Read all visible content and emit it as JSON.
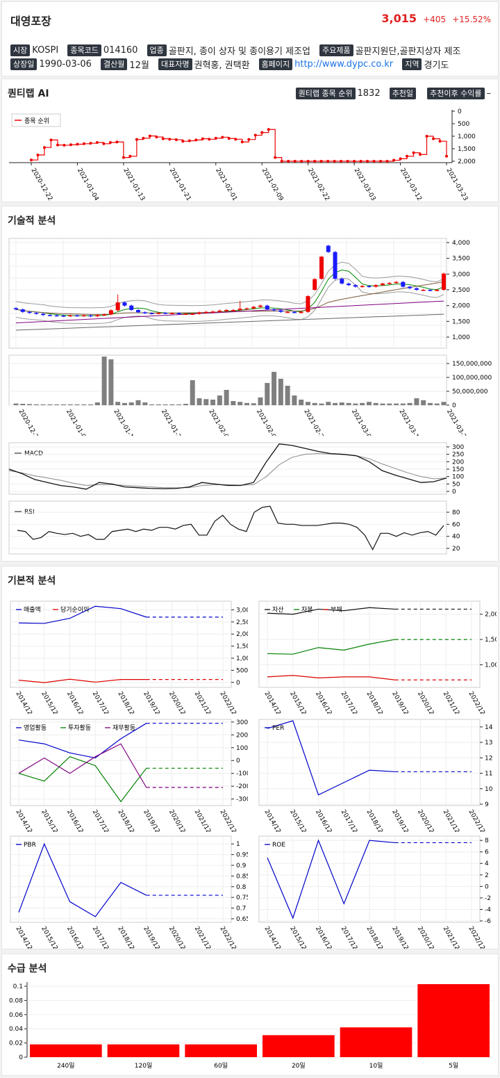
{
  "header": {
    "name": "대영포장",
    "price": "3,015",
    "change": "+405",
    "change_pct": "+15.52%"
  },
  "info": {
    "row1": [
      {
        "k": "시장",
        "v": "KOSPI"
      },
      {
        "k": "종목코드",
        "v": "014160"
      },
      {
        "k": "업종",
        "v": "골판지, 종이 상자 및 종이용기 제조업"
      },
      {
        "k": "주요제품",
        "v": "골판지원단,골판지상자 제조"
      }
    ],
    "row2": [
      {
        "k": "상장일",
        "v": "1990-03-06"
      },
      {
        "k": "결산월",
        "v": "12월"
      },
      {
        "k": "대표자명",
        "v": "권혁홍, 권택환"
      },
      {
        "k": "홈페이지",
        "v": "http://www.dypc.co.kr"
      },
      {
        "k": "지역",
        "v": "경기도"
      }
    ]
  },
  "quant": {
    "title": "퀀티랩 AI",
    "rank_label": "퀀티랩 종목 순위",
    "rank": "1832",
    "rec_label": "추천일",
    "rec_value": "",
    "ret_label": "추천이후 수익률",
    "ret_value": "–",
    "legend": "종목 순위",
    "y_ticks": [
      "0",
      "500",
      "1,000",
      "1,500",
      "2,000"
    ],
    "x_ticks": [
      "2020-12-22",
      "2021-01-04",
      "2021-01-13",
      "2021-01-21",
      "2021-02-01",
      "2021-02-09",
      "2021-02-22",
      "2021-03-03",
      "2021-03-12",
      "2021-03-23"
    ],
    "ranks": [
      1950,
      1750,
      1450,
      1150,
      1350,
      1360,
      1340,
      1320,
      1300,
      1280,
      1250,
      1300,
      1250,
      1230,
      1850,
      1800,
      1130,
      1080,
      990,
      1030,
      1100,
      1120,
      1140,
      1200,
      1180,
      1150,
      1100,
      1120,
      1080,
      1040,
      1090,
      1120,
      1230,
      1130,
      960,
      850,
      730,
      1850,
      2050,
      2050,
      2050,
      2050,
      2050,
      2050,
      2050,
      2050,
      2050,
      2050,
      2050,
      2050,
      2050,
      2050,
      2050,
      2050,
      2000,
      1960,
      1900,
      1800,
      1660,
      1730,
      1000,
      1100,
      1200,
      1800
    ]
  },
  "tech": {
    "title": "기술적 분석",
    "price_ticks": [
      "4,000",
      "3,500",
      "3,000",
      "2,500",
      "2,000",
      "1,500",
      "1,000"
    ],
    "vol_ticks": [
      "150,000,000",
      "100,000,000",
      "50,000,000",
      "0"
    ],
    "x_ticks": [
      "2020-12-22",
      "2021-01-04",
      "2021-01-13",
      "2021-01-21",
      "2021-02-01",
      "2021-02-09",
      "2021-02-22",
      "2021-03-03",
      "2021-03-12",
      "2021-03-23"
    ],
    "macd_label": "MACD",
    "macd_ticks": [
      "300",
      "250",
      "200",
      "150",
      "100",
      "50",
      "0"
    ],
    "rsi_label": "RSI",
    "rsi_ticks": [
      "80",
      "60",
      "40",
      "20"
    ]
  },
  "fund": {
    "title": "기본적 분석",
    "years": [
      "2014/12",
      "2015/12",
      "2016/12",
      "2017/12",
      "2018/12",
      "2019/12",
      "2020/12",
      "2021/12",
      "2022/12"
    ]
  },
  "supply": {
    "title": "수급 분석",
    "categories": [
      "240일",
      "120일",
      "60일",
      "20일",
      "10일",
      "5일"
    ],
    "values": [
      0.018,
      0.018,
      0.018,
      0.031,
      0.042,
      0.103
    ],
    "y_ticks": [
      "0.1",
      "0.08",
      "0.06",
      "0.04",
      "0.02",
      "0"
    ]
  },
  "chart_data": [
    {
      "type": "line",
      "title": "",
      "series": [
        {
          "name": "종목 순위",
          "values": [
            1950,
            1750,
            1450,
            1150,
            1350,
            1360,
            1340,
            1320,
            1300,
            1280,
            1250,
            1300,
            1250,
            1230,
            1850,
            1800,
            1130,
            1080,
            990,
            1030,
            1100,
            1120,
            1140,
            1200,
            1180,
            1150,
            1100,
            1120,
            1080,
            1040,
            1090,
            1120,
            1230,
            1130,
            960,
            850,
            730,
            1850,
            2050,
            2050,
            2050,
            2050,
            2050,
            2050,
            2050,
            2050,
            2050,
            2050,
            2050,
            2050,
            2050,
            2050,
            2050,
            2050,
            2000,
            1960,
            1900,
            1800,
            1660,
            1730,
            1000,
            1100,
            1200,
            1800
          ]
        }
      ],
      "ylim": [
        2000,
        0
      ]
    },
    {
      "type": "bar",
      "title": "",
      "categories": [
        "240일",
        "120일",
        "60일",
        "20일",
        "10일",
        "5일"
      ],
      "values": [
        0.018,
        0.018,
        0.018,
        0.031,
        0.042,
        0.103
      ],
      "ylim": [
        0,
        0.1
      ]
    },
    {
      "type": "line",
      "title": "",
      "legend": [
        "매출액",
        "당기순이익"
      ],
      "x": [
        "2014/12",
        "2015/12",
        "2016/12",
        "2017/12",
        "2018/12",
        "2019/12",
        "2020/12",
        "2021/12",
        "2022/12"
      ],
      "series": [
        {
          "name": "매출액",
          "values": [
            2460,
            2440,
            2650,
            3150,
            3050,
            2700,
            2700,
            2700,
            2700
          ]
        },
        {
          "name": "당기순이익",
          "values": [
            90,
            -10,
            130,
            10,
            120,
            120,
            120,
            120,
            120
          ]
        }
      ]
    },
    {
      "type": "line",
      "title": "",
      "legend": [
        "자산",
        "자본",
        "부채"
      ],
      "x": [
        "2014/12",
        "2015/12",
        "2016/12",
        "2017/12",
        "2018/12",
        "2019/12",
        "2020/12",
        "2021/12",
        "2022/12"
      ],
      "series": [
        {
          "name": "자산",
          "values": [
            2020,
            2000,
            2100,
            2070,
            2130,
            2100,
            2100,
            2100,
            2100
          ]
        },
        {
          "name": "자본",
          "values": [
            1220,
            1210,
            1340,
            1290,
            1410,
            1500,
            1500,
            1500,
            1500
          ]
        },
        {
          "name": "부채",
          "values": [
            760,
            790,
            740,
            760,
            760,
            700,
            700,
            700,
            700
          ]
        }
      ]
    },
    {
      "type": "line",
      "title": "",
      "legend": [
        "영업활동",
        "투자활동",
        "재무활동"
      ],
      "x": [
        "2014/12",
        "2015/12",
        "2016/12",
        "2017/12",
        "2018/12",
        "2019/12",
        "2020/12",
        "2021/12",
        "2022/12"
      ],
      "series": [
        {
          "name": "영업활동",
          "values": [
            160,
            130,
            60,
            20,
            170,
            290,
            290,
            290,
            290
          ]
        },
        {
          "name": "투자활동",
          "values": [
            -100,
            -160,
            30,
            -40,
            -320,
            -60,
            -60,
            -60,
            -60
          ]
        },
        {
          "name": "재무활동",
          "values": [
            -100,
            20,
            -100,
            30,
            130,
            -210,
            -210,
            -210,
            -210
          ]
        }
      ]
    },
    {
      "type": "line",
      "title": "",
      "legend": [
        "PER"
      ],
      "x": [
        "2014/12",
        "2015/12",
        "2016/12",
        "2017/12",
        "2018/12",
        "2019/12",
        "2020/12",
        "2021/12",
        "2022/12"
      ],
      "series": [
        {
          "name": "PER",
          "values": [
            13.9,
            null,
            9.6,
            10.4,
            11.2,
            11.1,
            11.1,
            11.1,
            11.1
          ]
        }
      ]
    },
    {
      "type": "line",
      "title": "",
      "legend": [
        "PBR"
      ],
      "x": [
        "2014/12",
        "2015/12",
        "2016/12",
        "2017/12",
        "2018/12",
        "2019/12",
        "2020/12",
        "2021/12",
        "2022/12"
      ],
      "series": [
        {
          "name": "PBR",
          "values": [
            0.68,
            1.0,
            0.73,
            0.66,
            0.82,
            0.76,
            0.76,
            0.76,
            0.76
          ]
        }
      ]
    },
    {
      "type": "line",
      "title": "",
      "legend": [
        "ROE"
      ],
      "x": [
        "2014/12",
        "2015/12",
        "2016/12",
        "2017/12",
        "2018/12",
        "2019/12",
        "2020/12",
        "2021/12",
        "2022/12"
      ],
      "series": [
        {
          "name": "ROE",
          "values": [
            5.0,
            -5.5,
            8.0,
            -3.0,
            8.0,
            7.6,
            7.6,
            7.6,
            7.6
          ]
        }
      ]
    }
  ]
}
